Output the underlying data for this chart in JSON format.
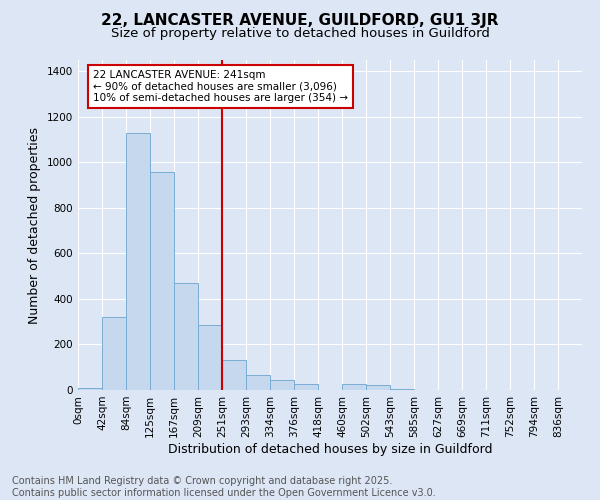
{
  "title": "22, LANCASTER AVENUE, GUILDFORD, GU1 3JR",
  "subtitle": "Size of property relative to detached houses in Guildford",
  "xlabel": "Distribution of detached houses by size in Guildford",
  "ylabel": "Number of detached properties",
  "bin_labels": [
    "0sqm",
    "42sqm",
    "84sqm",
    "125sqm",
    "167sqm",
    "209sqm",
    "251sqm",
    "293sqm",
    "334sqm",
    "376sqm",
    "418sqm",
    "460sqm",
    "502sqm",
    "543sqm",
    "585sqm",
    "627sqm",
    "669sqm",
    "711sqm",
    "752sqm",
    "794sqm",
    "836sqm"
  ],
  "bar_heights": [
    10,
    320,
    1130,
    960,
    470,
    285,
    130,
    68,
    42,
    25,
    0,
    25,
    20,
    3,
    0,
    0,
    0,
    0,
    0,
    0,
    0
  ],
  "bar_color": "#c5d8ee",
  "bar_edge_color": "#7aadd4",
  "vline_color": "#cc0000",
  "ylim": [
    0,
    1450
  ],
  "yticks": [
    0,
    200,
    400,
    600,
    800,
    1000,
    1200,
    1400
  ],
  "annotation_text": "22 LANCASTER AVENUE: 241sqm\n← 90% of detached houses are smaller (3,096)\n10% of semi-detached houses are larger (354) →",
  "annotation_box_color": "#cc0000",
  "footer_text": "Contains HM Land Registry data © Crown copyright and database right 2025.\nContains public sector information licensed under the Open Government Licence v3.0.",
  "bg_color": "#dde6f5",
  "grid_color": "#ffffff",
  "title_fontsize": 11,
  "subtitle_fontsize": 9.5,
  "label_fontsize": 9,
  "tick_fontsize": 7.5,
  "footer_fontsize": 7,
  "annot_fontsize": 7.5
}
